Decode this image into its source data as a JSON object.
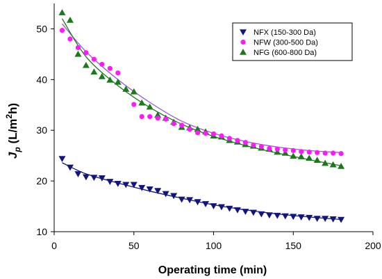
{
  "chart_data": {
    "type": "scatter",
    "xlabel": "Operating time (min)",
    "ylabel_parts": [
      "J",
      "p",
      " (L/m",
      "2",
      "h)"
    ],
    "xlim": [
      0,
      200
    ],
    "ylim": [
      10,
      55
    ],
    "xticks": [
      0,
      50,
      100,
      150,
      200
    ],
    "yticks": [
      10,
      20,
      30,
      40,
      50
    ],
    "grid": false,
    "legend_position": "top-right",
    "series": [
      {
        "name": "NFX (150-300 Da)",
        "marker": "triangle-down",
        "color": "#10167e",
        "fit_color": "#10167e",
        "x": [
          5,
          10,
          15,
          20,
          25,
          30,
          35,
          40,
          45,
          50,
          55,
          60,
          65,
          70,
          75,
          80,
          85,
          90,
          95,
          100,
          105,
          110,
          115,
          120,
          125,
          130,
          135,
          140,
          145,
          150,
          155,
          160,
          165,
          170,
          175,
          180
        ],
        "y": [
          24.4,
          22.7,
          21.4,
          20.8,
          20.7,
          20.6,
          19.9,
          19.5,
          19.3,
          19.3,
          18.7,
          18.4,
          18.1,
          17.5,
          17.1,
          16.4,
          16.3,
          15.9,
          15.5,
          15.1,
          14.9,
          14.6,
          14.3,
          14.0,
          13.8,
          13.5,
          13.3,
          13.2,
          13.1,
          13.0,
          12.9,
          12.8,
          12.6,
          12.6,
          12.5,
          12.4
        ],
        "fit_x": [
          5,
          20,
          40,
          60,
          80,
          100,
          120,
          140,
          160,
          180
        ],
        "fit_y": [
          23.6,
          21.4,
          19.6,
          18.0,
          16.6,
          15.3,
          14.3,
          13.5,
          12.9,
          12.4
        ]
      },
      {
        "name": "NFW (300-500 Da)",
        "marker": "circle",
        "color": "#ff19ff",
        "fit_color": "#9a55d9",
        "x": [
          5,
          10,
          15,
          20,
          25,
          30,
          35,
          40,
          50,
          55,
          60,
          65,
          70,
          75,
          80,
          85,
          90,
          95,
          100,
          105,
          110,
          115,
          120,
          125,
          130,
          135,
          140,
          145,
          150,
          155,
          160,
          165,
          170,
          175,
          180
        ],
        "y": [
          49.7,
          48.0,
          46.3,
          45.3,
          44.0,
          43.0,
          42.2,
          41.3,
          35.1,
          32.7,
          32.7,
          32.4,
          32.2,
          31.3,
          31.0,
          30.2,
          29.5,
          29.4,
          29.3,
          28.9,
          28.4,
          28.0,
          27.6,
          27.1,
          26.8,
          26.4,
          26.3,
          26.1,
          26.0,
          25.8,
          25.7,
          25.6,
          25.5,
          25.5,
          25.4
        ],
        "fit_x": [
          5,
          20,
          40,
          60,
          80,
          100,
          120,
          140,
          160,
          180
        ],
        "fit_y": [
          51.0,
          45.5,
          40.0,
          35.5,
          31.8,
          29.4,
          27.8,
          26.7,
          26.0,
          25.6
        ]
      },
      {
        "name": "NFG (600-800 Da)",
        "marker": "triangle-up",
        "color": "#1a7a1a",
        "fit_color": "#1a7a1a",
        "x": [
          5,
          10,
          15,
          20,
          25,
          30,
          35,
          40,
          45,
          50,
          55,
          60,
          65,
          70,
          75,
          80,
          85,
          90,
          95,
          100,
          105,
          110,
          115,
          120,
          125,
          130,
          135,
          140,
          145,
          150,
          155,
          160,
          165,
          170,
          175,
          180
        ],
        "y": [
          53.2,
          51.7,
          45.0,
          42.8,
          41.5,
          40.6,
          39.9,
          39.5,
          38.1,
          37.6,
          35.4,
          34.6,
          33.0,
          32.4,
          31.6,
          30.6,
          30.5,
          30.2,
          29.7,
          28.9,
          28.7,
          28.0,
          27.7,
          27.2,
          26.9,
          26.5,
          26.3,
          25.7,
          25.5,
          24.9,
          24.8,
          24.5,
          24.1,
          23.5,
          23.2,
          22.9
        ],
        "fit_x": [
          5,
          20,
          40,
          60,
          80,
          100,
          120,
          140,
          160,
          180
        ],
        "fit_y": [
          52.0,
          44.5,
          38.8,
          34.5,
          31.2,
          28.8,
          27.0,
          25.5,
          24.2,
          23.0
        ]
      }
    ]
  }
}
